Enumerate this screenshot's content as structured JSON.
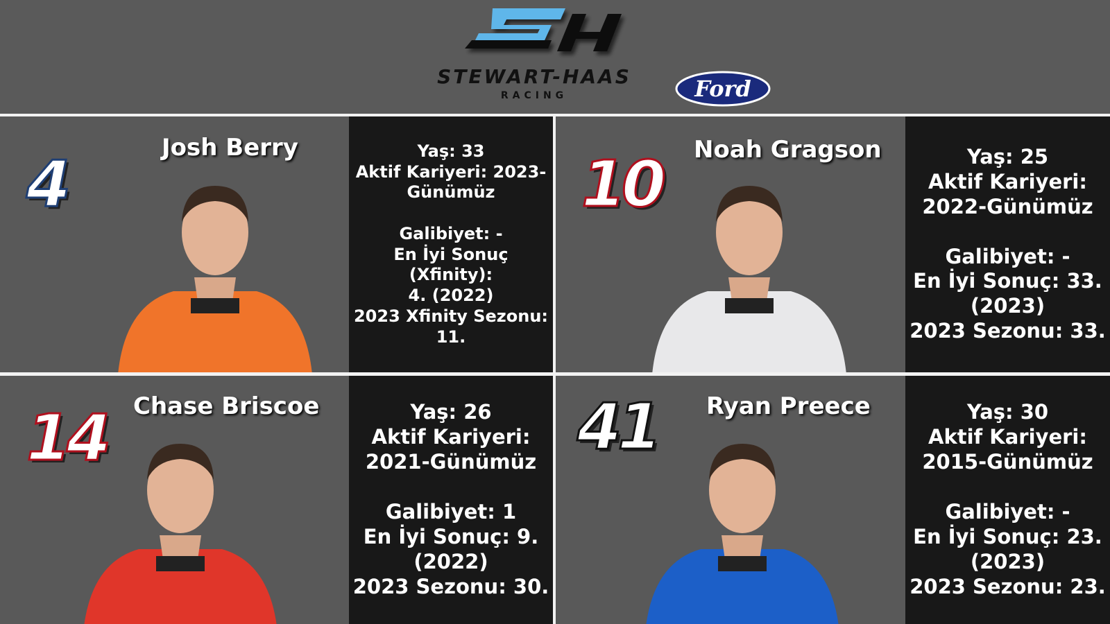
{
  "header": {
    "logo_text": "SH",
    "team_name": "STEWART-HAAS",
    "team_sub": "RACING",
    "sponsor": "Ford"
  },
  "drivers": [
    {
      "number": "4",
      "name": "Josh Berry",
      "number_outline": "#1f3f74",
      "suit": "#f0742a",
      "stats": [
        "Yaş: 33",
        "Aktif Kariyeri: 2023-",
        "Günümüz",
        "",
        "Galibiyet: -",
        "En İyi Sonuç (Xfinity):",
        "4. (2022)",
        "2023 Xfinity Sezonu:",
        "11."
      ]
    },
    {
      "number": "10",
      "name": "Noah Gragson",
      "number_outline": "#b0101e",
      "suit": "#e8e8ea",
      "stats": [
        "Yaş: 25",
        "Aktif Kariyeri:",
        "2022-Günümüz",
        "",
        "Galibiyet: -",
        "En İyi Sonuç: 33.",
        "(2023)",
        "2023 Sezonu: 33."
      ]
    },
    {
      "number": "14",
      "name": "Chase Briscoe",
      "number_outline": "#b0101e",
      "suit": "#e0362a",
      "stats": [
        "Yaş: 26",
        "Aktif Kariyeri:",
        "2021-Günümüz",
        "",
        "Galibiyet: 1",
        "En İyi Sonuç: 9.",
        "(2022)",
        "2023 Sezonu: 30."
      ]
    },
    {
      "number": "41",
      "name": "Ryan Preece",
      "number_outline": "#111111",
      "suit": "#1c5fc8",
      "stats": [
        "Yaş: 30",
        "Aktif Kariyeri:",
        "2015-Günümüz",
        "",
        "Galibiyet: -",
        "En İyi Sonuç: 23.",
        "(2023)",
        "2023 Sezonu: 23."
      ]
    }
  ]
}
